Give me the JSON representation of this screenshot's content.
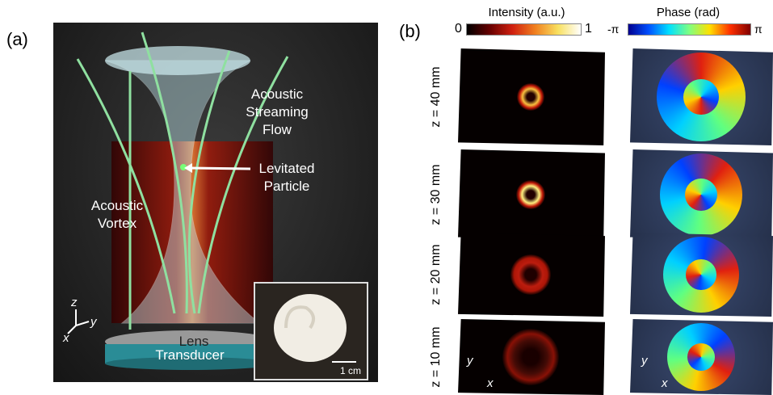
{
  "panel_a": {
    "label": "(a)",
    "streaming": [
      "Acoustic",
      "Streaming",
      "Flow"
    ],
    "particle": [
      "Levitated",
      "Particle"
    ],
    "vortex": [
      "Acoustic",
      "Vortex"
    ],
    "lens": "Lens",
    "transducer": "Transducer",
    "axes": {
      "z": "z",
      "x": "x",
      "y": "y"
    },
    "inset_scale": "1 cm"
  },
  "panel_b": {
    "label": "(b)",
    "intensity_colorbar": {
      "title": "Intensity (a.u.)",
      "min": "0",
      "max": "1"
    },
    "phase_colorbar": {
      "title": "Phase (rad)",
      "min": "-π",
      "max": "π"
    },
    "rows": [
      "z = 40 mm",
      "z = 30 mm",
      "z = 20 mm",
      "z = 10 mm"
    ],
    "intensity_axes": {
      "y": "y",
      "x": "x"
    },
    "phase_axes": {
      "y": "y",
      "x": "x"
    }
  }
}
